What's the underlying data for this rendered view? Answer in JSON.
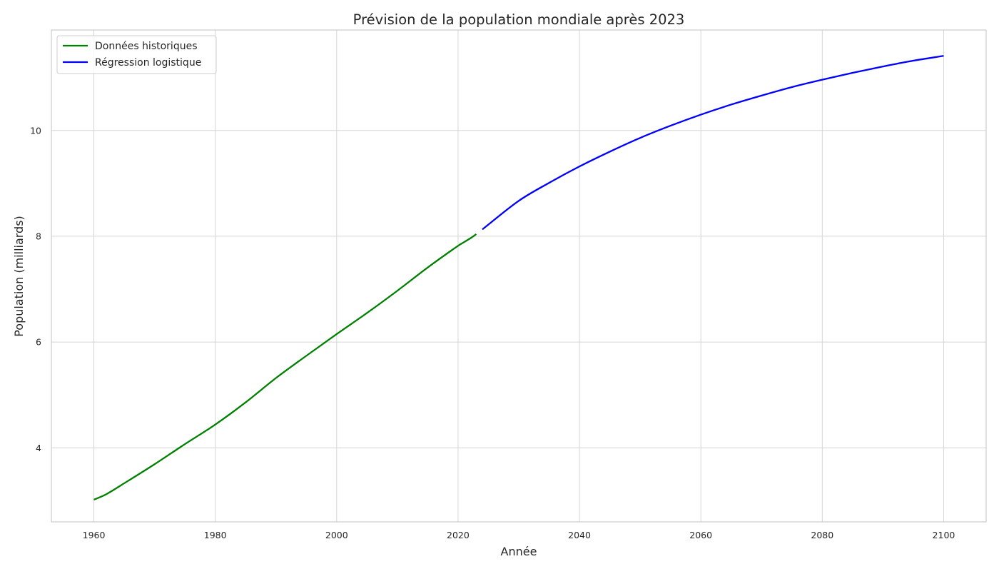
{
  "chart_data": {
    "type": "line",
    "title": "Prévision de la population mondiale après 2023",
    "xlabel": "Année",
    "ylabel": "Population (milliards)",
    "xlim": [
      1953,
      2107
    ],
    "ylim": [
      2.6,
      11.9
    ],
    "xticks": [
      1960,
      1980,
      2000,
      2020,
      2040,
      2060,
      2080,
      2100
    ],
    "yticks": [
      4,
      6,
      8,
      10
    ],
    "grid": true,
    "legend_position": "top-left",
    "series": [
      {
        "name": "Données historiques",
        "color": "#008000",
        "x": [
          1960,
          1962,
          1965,
          1970,
          1975,
          1980,
          1985,
          1990,
          1995,
          2000,
          2005,
          2010,
          2015,
          2020,
          2021,
          2022,
          2023
        ],
        "y": [
          3.02,
          3.12,
          3.33,
          3.69,
          4.07,
          4.44,
          4.86,
          5.32,
          5.74,
          6.15,
          6.55,
          6.97,
          7.41,
          7.82,
          7.89,
          7.96,
          8.04
        ]
      },
      {
        "name": "Régression logistique",
        "color": "#0000ff",
        "x": [
          2024,
          2030,
          2035,
          2040,
          2045,
          2050,
          2055,
          2060,
          2065,
          2070,
          2075,
          2080,
          2085,
          2090,
          2095,
          2100
        ],
        "y": [
          8.13,
          8.67,
          9.01,
          9.32,
          9.6,
          9.86,
          10.09,
          10.3,
          10.49,
          10.66,
          10.82,
          10.96,
          11.09,
          11.21,
          11.32,
          11.41
        ]
      }
    ]
  }
}
